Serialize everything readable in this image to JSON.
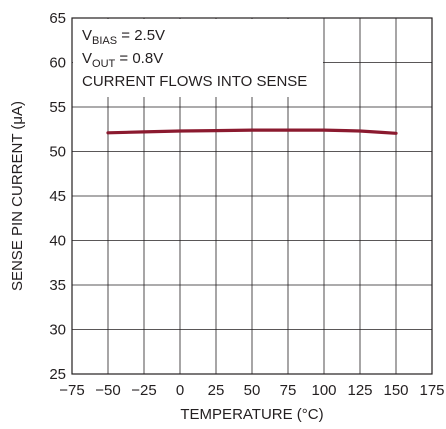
{
  "chart_data": {
    "type": "line",
    "xlabel": "TEMPERATURE (°C)",
    "ylabel": "SENSE PIN CURRENT (μA)",
    "xlim": [
      -75,
      175
    ],
    "ylim": [
      25,
      65
    ],
    "x_ticks": [
      -75,
      -50,
      -25,
      0,
      25,
      50,
      75,
      100,
      125,
      150,
      175
    ],
    "y_ticks": [
      25,
      30,
      35,
      40,
      45,
      50,
      55,
      60,
      65
    ],
    "grid": true,
    "line_color": "#8b1a2f",
    "annotations": [
      {
        "base": "V",
        "sub": "BIAS",
        "rest": " = 2.5V"
      },
      {
        "base": "V",
        "sub": "OUT",
        "rest": " = 0.8V"
      },
      {
        "base": "CURRENT FLOWS INTO SENSE",
        "sub": "",
        "rest": ""
      }
    ],
    "series": [
      {
        "x": [
          -50,
          -25,
          0,
          25,
          50,
          75,
          100,
          115,
          125,
          140,
          150
        ],
        "y": [
          52.1,
          52.2,
          52.3,
          52.35,
          52.4,
          52.4,
          52.4,
          52.35,
          52.3,
          52.15,
          52.05
        ]
      }
    ]
  }
}
